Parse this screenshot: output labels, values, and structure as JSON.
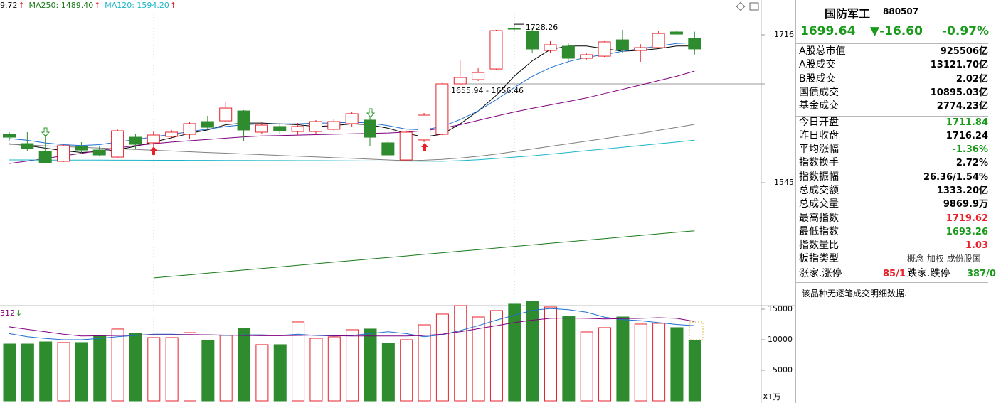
{
  "header": {
    "ma_labels": [
      {
        "text": "9.72",
        "arrow": "↑",
        "color": "#000000"
      },
      {
        "text": "MA250: 1489.40",
        "arrow": "↑",
        "color": "#1a7a1a"
      },
      {
        "text": "MA120: 1594.20",
        "arrow": "↑",
        "color": "#1ab5c8"
      }
    ],
    "volume_label": {
      "text": "312",
      "arrow": "↓",
      "color": "#800080"
    }
  },
  "kline": {
    "type": "candlestick",
    "up_color": "#e8212b",
    "down_color": "#2e8b2e",
    "ylim": [
      1402.8,
      1756.3
    ],
    "yticks": [
      1545,
      1716
    ],
    "candles": [
      {
        "open": 1600.9,
        "high": 1603.4,
        "low": 1593.5,
        "close": 1597.6
      },
      {
        "open": 1590.2,
        "high": 1603.4,
        "low": 1582.0,
        "close": 1584.5
      },
      {
        "open": 1581.2,
        "high": 1600.1,
        "low": 1567.2,
        "close": 1568.0
      },
      {
        "open": 1569.7,
        "high": 1590.2,
        "low": 1568.9,
        "close": 1587.8
      },
      {
        "open": 1586.9,
        "high": 1591.9,
        "low": 1579.5,
        "close": 1582.8
      },
      {
        "open": 1582.8,
        "high": 1587.8,
        "low": 1575.4,
        "close": 1577.1
      },
      {
        "open": 1574.6,
        "high": 1607.5,
        "low": 1573.8,
        "close": 1605.0
      },
      {
        "open": 1597.6,
        "high": 1601.7,
        "low": 1583.7,
        "close": 1589.4
      },
      {
        "open": 1591.1,
        "high": 1604.2,
        "low": 1587.8,
        "close": 1600.1
      },
      {
        "open": 1598.5,
        "high": 1605.9,
        "low": 1595.2,
        "close": 1603.4
      },
      {
        "open": 1600.9,
        "high": 1614.9,
        "low": 1596.0,
        "close": 1613.3
      },
      {
        "open": 1615.7,
        "high": 1622.3,
        "low": 1606.7,
        "close": 1609.1
      },
      {
        "open": 1616.5,
        "high": 1638.7,
        "low": 1614.9,
        "close": 1631.3
      },
      {
        "open": 1628.0,
        "high": 1628.9,
        "low": 1592.7,
        "close": 1605.9
      },
      {
        "open": 1603.4,
        "high": 1614.9,
        "low": 1600.9,
        "close": 1611.6
      },
      {
        "open": 1610.0,
        "high": 1613.3,
        "low": 1601.7,
        "close": 1605.0
      },
      {
        "open": 1604.2,
        "high": 1614.1,
        "low": 1600.1,
        "close": 1610.0
      },
      {
        "open": 1604.2,
        "high": 1617.4,
        "low": 1600.1,
        "close": 1615.7
      },
      {
        "open": 1606.7,
        "high": 1618.2,
        "low": 1604.2,
        "close": 1615.7
      },
      {
        "open": 1613.3,
        "high": 1626.4,
        "low": 1610.0,
        "close": 1624.8
      },
      {
        "open": 1617.4,
        "high": 1620.6,
        "low": 1586.9,
        "close": 1597.6
      },
      {
        "open": 1591.1,
        "high": 1594.4,
        "low": 1576.3,
        "close": 1577.1
      },
      {
        "open": 1571.3,
        "high": 1605.9,
        "low": 1570.5,
        "close": 1603.4
      },
      {
        "open": 1594.4,
        "high": 1625.6,
        "low": 1591.9,
        "close": 1623.1
      },
      {
        "open": 1600.9,
        "high": 1660.0,
        "low": 1600.1,
        "close": 1659.3
      },
      {
        "open": 1659.3,
        "high": 1687.2,
        "low": 1657.6,
        "close": 1666.7
      },
      {
        "open": 1664.2,
        "high": 1677.4,
        "low": 1662.6,
        "close": 1672.4
      },
      {
        "open": 1676.5,
        "high": 1721.8,
        "low": 1675.7,
        "close": 1720.9
      },
      {
        "open": 1723.4,
        "high": 1728.26,
        "low": 1720.1,
        "close": 1722.6
      },
      {
        "open": 1720.1,
        "high": 1723.4,
        "low": 1694.6,
        "close": 1699.6
      },
      {
        "open": 1697.9,
        "high": 1708.6,
        "low": 1695.4,
        "close": 1704.5
      },
      {
        "open": 1702.8,
        "high": 1707.0,
        "low": 1684.8,
        "close": 1688.9
      },
      {
        "open": 1688.9,
        "high": 1695.4,
        "low": 1687.2,
        "close": 1693.0
      },
      {
        "open": 1691.3,
        "high": 1709.4,
        "low": 1690.5,
        "close": 1707.8
      },
      {
        "open": 1710.2,
        "high": 1721.8,
        "low": 1694.6,
        "close": 1698.7
      },
      {
        "open": 1697.9,
        "high": 1705.3,
        "low": 1684.8,
        "close": 1701.2
      },
      {
        "open": 1701.2,
        "high": 1720.1,
        "low": 1700.4,
        "close": 1717.6
      },
      {
        "open": 1719.3,
        "high": 1720.9,
        "low": 1716.8,
        "close": 1716.8
      },
      {
        "open": 1711.84,
        "high": 1719.62,
        "low": 1693.26,
        "close": 1699.64
      }
    ],
    "ma_lines": [
      {
        "color": "#000000",
        "values": [
          1590,
          1588,
          1585,
          1582,
          1580,
          1581,
          1583,
          1587,
          1592,
          1597,
          1602,
          1606,
          1612,
          1614,
          1614,
          1613,
          1612,
          1610,
          1611,
          1613,
          1612,
          1608,
          1602,
          1598,
          1601,
          1613,
          1628,
          1646,
          1668,
          1686,
          1699,
          1703,
          1703,
          1700,
          1697,
          1698,
          1700,
          1703,
          1703
        ]
      },
      {
        "color": "#1f6fd0",
        "values": [
          1596,
          1594,
          1591,
          1589,
          1588,
          1589,
          1592,
          1595,
          1598,
          1601,
          1604,
          1607,
          1610,
          1612,
          1613,
          1613,
          1613,
          1614,
          1614,
          1615,
          1614,
          1611,
          1607,
          1606,
          1610,
          1618,
          1628,
          1641,
          1655,
          1668,
          1678,
          1685,
          1690,
          1693,
          1697,
          1700,
          1703,
          1706,
          1707
        ]
      },
      {
        "color": "#800080",
        "values": [
          1567.2,
          1570,
          1573,
          1576,
          1579,
          1582,
          1585,
          1588,
          1590,
          1592,
          1593.5,
          1595,
          1596.5,
          1598,
          1599,
          1599.5,
          1600,
          1600.5,
          1601,
          1601.5,
          1602,
          1602.5,
          1603.5,
          1605,
          1608,
          1612,
          1617,
          1622,
          1626.7,
          1631,
          1635,
          1639,
          1643,
          1648,
          1653,
          1658,
          1663,
          1668,
          1674.1
        ]
      },
      {
        "color": "#808080",
        "values": [
          1589.4,
          1588.5,
          1587.7,
          1586.8,
          1586.0,
          1585.1,
          1584.2,
          1583.4,
          1582.5,
          1581.7,
          1580.8,
          1579.9,
          1579.1,
          1578.2,
          1577.4,
          1576.5,
          1575.6,
          1574.8,
          1573.9,
          1573.1,
          1572.2,
          1571.3,
          1570.5,
          1571.0,
          1572.0,
          1573.5,
          1575.5,
          1578.0,
          1581.0,
          1584.0,
          1587.0,
          1590.0,
          1593.0,
          1596.0,
          1599.0,
          1602.0,
          1605.5,
          1609.0,
          1612.4
        ]
      },
      {
        "color": "#1ab5c8",
        "values": [
          1571.3,
          1571.3,
          1571.2,
          1571.2,
          1571.1,
          1571.1,
          1571.0,
          1571.0,
          1570.9,
          1570.9,
          1570.8,
          1570.8,
          1570.7,
          1570.7,
          1570.6,
          1570.6,
          1570.5,
          1570.5,
          1570.4,
          1570.3,
          1570.2,
          1570.1,
          1570.0,
          1569.9,
          1569.8,
          1570.5,
          1571.5,
          1573,
          1574.5,
          1576,
          1578,
          1580,
          1582,
          1584,
          1586,
          1588,
          1590,
          1592,
          1594.2
        ]
      },
      {
        "color": "#1a7a1a",
        "values": [
          null,
          null,
          null,
          null,
          null,
          null,
          null,
          null,
          1434.9,
          1436.7,
          1438.5,
          1440.4,
          1442.2,
          1444.0,
          1445.8,
          1447.6,
          1449.4,
          1451.3,
          1453.1,
          1454.9,
          1456.7,
          1458.5,
          1460.3,
          1462.2,
          1464.0,
          1465.8,
          1467.6,
          1469.4,
          1471.2,
          1473.1,
          1474.9,
          1476.7,
          1478.5,
          1480.3,
          1482.1,
          1484.0,
          1485.8,
          1487.6,
          1489.4
        ]
      }
    ],
    "annotations": [
      {
        "text": "1728.26"
      },
      {
        "text": "1655.94 - 1656.46"
      }
    ]
  },
  "volume": {
    "type": "bar",
    "ylim": [
      0,
      16510
    ],
    "yticks": [
      5000,
      10000,
      15000
    ],
    "unit_label": "X1万",
    "values": [
      9300,
      9300,
      9650,
      9540,
      9540,
      10700,
      11750,
      11050,
      10350,
      10350,
      11160,
      9890,
      10700,
      11860,
      9190,
      9190,
      12910,
      10230,
      10470,
      11630,
      11750,
      9420,
      10000,
      12440,
      14190,
      15580,
      13720,
      14770,
      15820,
      16280,
      15350,
      13840,
      11280,
      11980,
      13720,
      12560,
      12680,
      11980,
      9890
    ],
    "ma_lines": [
      {
        "color": "#1f6fd0",
        "values": [
          11000,
          10500,
          10200,
          10000,
          10000,
          10200,
          10500,
          10700,
          10900,
          10900,
          10800,
          10800,
          10700,
          10800,
          10800,
          10700,
          10900,
          10700,
          10600,
          10700,
          11000,
          11300,
          11000,
          10500,
          10800,
          11500,
          12300,
          13200,
          14000,
          14800,
          15100,
          14900,
          14500,
          13700,
          13300,
          13100,
          12800,
          12500,
          12300
        ]
      },
      {
        "color": "#800080",
        "values": [
          12100,
          11700,
          11300,
          10900,
          10600,
          10650,
          10700,
          10750,
          10800,
          10800,
          10850,
          10800,
          10750,
          10700,
          10650,
          10650,
          10700,
          10750,
          10650,
          10600,
          10600,
          10600,
          10600,
          10700,
          10900,
          11300,
          11800,
          12300,
          12800,
          13200,
          13500,
          13550,
          13500,
          13400,
          13450,
          13500,
          13600,
          13500,
          13000
        ]
      }
    ]
  },
  "info_panel": {
    "name": "国防军工",
    "code": "880507",
    "price": "1699.64",
    "change": "▼-16.60",
    "change_pct": "-0.97%",
    "quote_color": "#1a9a1a",
    "rows": [
      {
        "label": "A股总市值",
        "value": "925506亿",
        "color": "#000000"
      },
      {
        "label": "A股成交",
        "value": "13121.70亿",
        "color": "#000000"
      },
      {
        "label": "B股成交",
        "value": "2.02亿",
        "color": "#000000"
      },
      {
        "label": "国债成交",
        "value": "10895.03亿",
        "color": "#000000"
      },
      {
        "label": "基金成交",
        "value": "2774.23亿",
        "color": "#000000"
      },
      {
        "label": "今日开盘",
        "value": "1711.84",
        "color": "#1a9a1a"
      },
      {
        "label": "昨日收盘",
        "value": "1716.24",
        "color": "#000000"
      },
      {
        "label": "平均涨幅",
        "value": "-1.36%",
        "color": "#1a9a1a"
      },
      {
        "label": "指数换手",
        "value": "2.72%",
        "color": "#000000"
      },
      {
        "label": "指数振幅",
        "value": "26.36/1.54%",
        "color": "#000000"
      },
      {
        "label": "总成交额",
        "value": "1333.20亿",
        "color": "#000000"
      },
      {
        "label": "总成交量",
        "value": "9869.9万",
        "color": "#000000"
      },
      {
        "label": "最高指数",
        "value": "1719.62",
        "color": "#e8212b"
      },
      {
        "label": "最低指数",
        "value": "1693.26",
        "color": "#1a9a1a"
      },
      {
        "label": "指数量比",
        "value": "1.03",
        "color": "#e8212b"
      }
    ],
    "type_row": {
      "label": "板指类型",
      "options": "概念 加权 成份股国"
    },
    "limit_row": {
      "up_label": "涨家.涨停",
      "up_value": "85/1",
      "down_label": "跌家.跌停",
      "down_value": "387/0"
    },
    "note": "该品种无逐笔成交明细数据."
  }
}
